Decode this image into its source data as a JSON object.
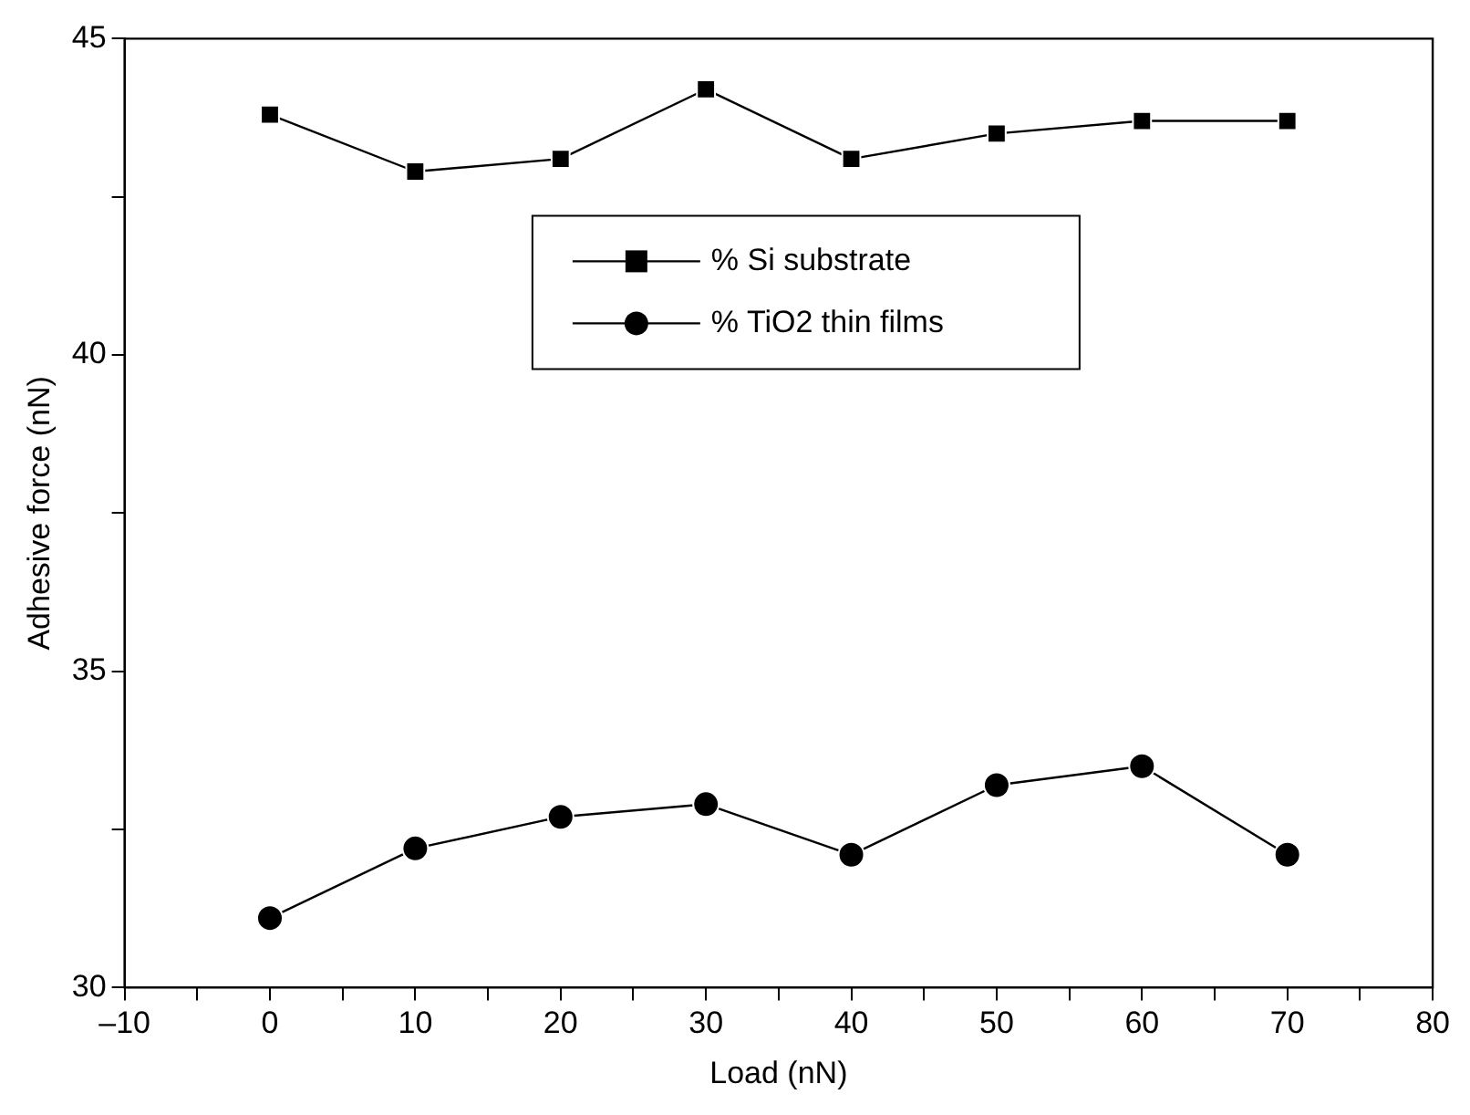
{
  "chart_data": {
    "type": "line",
    "xlabel": "Load (nN)",
    "ylabel": "Adhesive force (nN)",
    "x": [
      0,
      10,
      20,
      30,
      40,
      50,
      60,
      70
    ],
    "series": [
      {
        "name": "% Si substrate",
        "color": "#000000",
        "marker": "square",
        "values": [
          43.8,
          42.9,
          43.1,
          44.2,
          43.1,
          43.5,
          43.7,
          43.7
        ]
      },
      {
        "name": "% TiO2 thin films",
        "color": "#000000",
        "marker": "circle",
        "values": [
          31.1,
          32.2,
          32.7,
          32.9,
          32.1,
          33.2,
          33.5,
          32.1
        ]
      }
    ],
    "xlim": [
      -10,
      80
    ],
    "xticks": [
      {
        "value": -10,
        "label": "–10"
      },
      {
        "value": -5,
        "label": null
      },
      0,
      {
        "value": 5,
        "label": null
      },
      10,
      {
        "value": 15,
        "label": null
      },
      20,
      {
        "value": 25,
        "label": null
      },
      30,
      {
        "value": 35,
        "label": null
      },
      40,
      {
        "value": 45,
        "label": null
      },
      50,
      {
        "value": 55,
        "label": null
      },
      60,
      {
        "value": 65,
        "label": null
      },
      70,
      {
        "value": 75,
        "label": null
      },
      80
    ],
    "ylim": [
      30,
      45
    ],
    "yticks": [
      30,
      {
        "value": 32.5,
        "label": null
      },
      35,
      {
        "value": 37.5,
        "label": null
      },
      40,
      {
        "value": 42.5,
        "label": null
      },
      45
    ],
    "grid": false,
    "legend": "top",
    "line_style": "solid"
  }
}
